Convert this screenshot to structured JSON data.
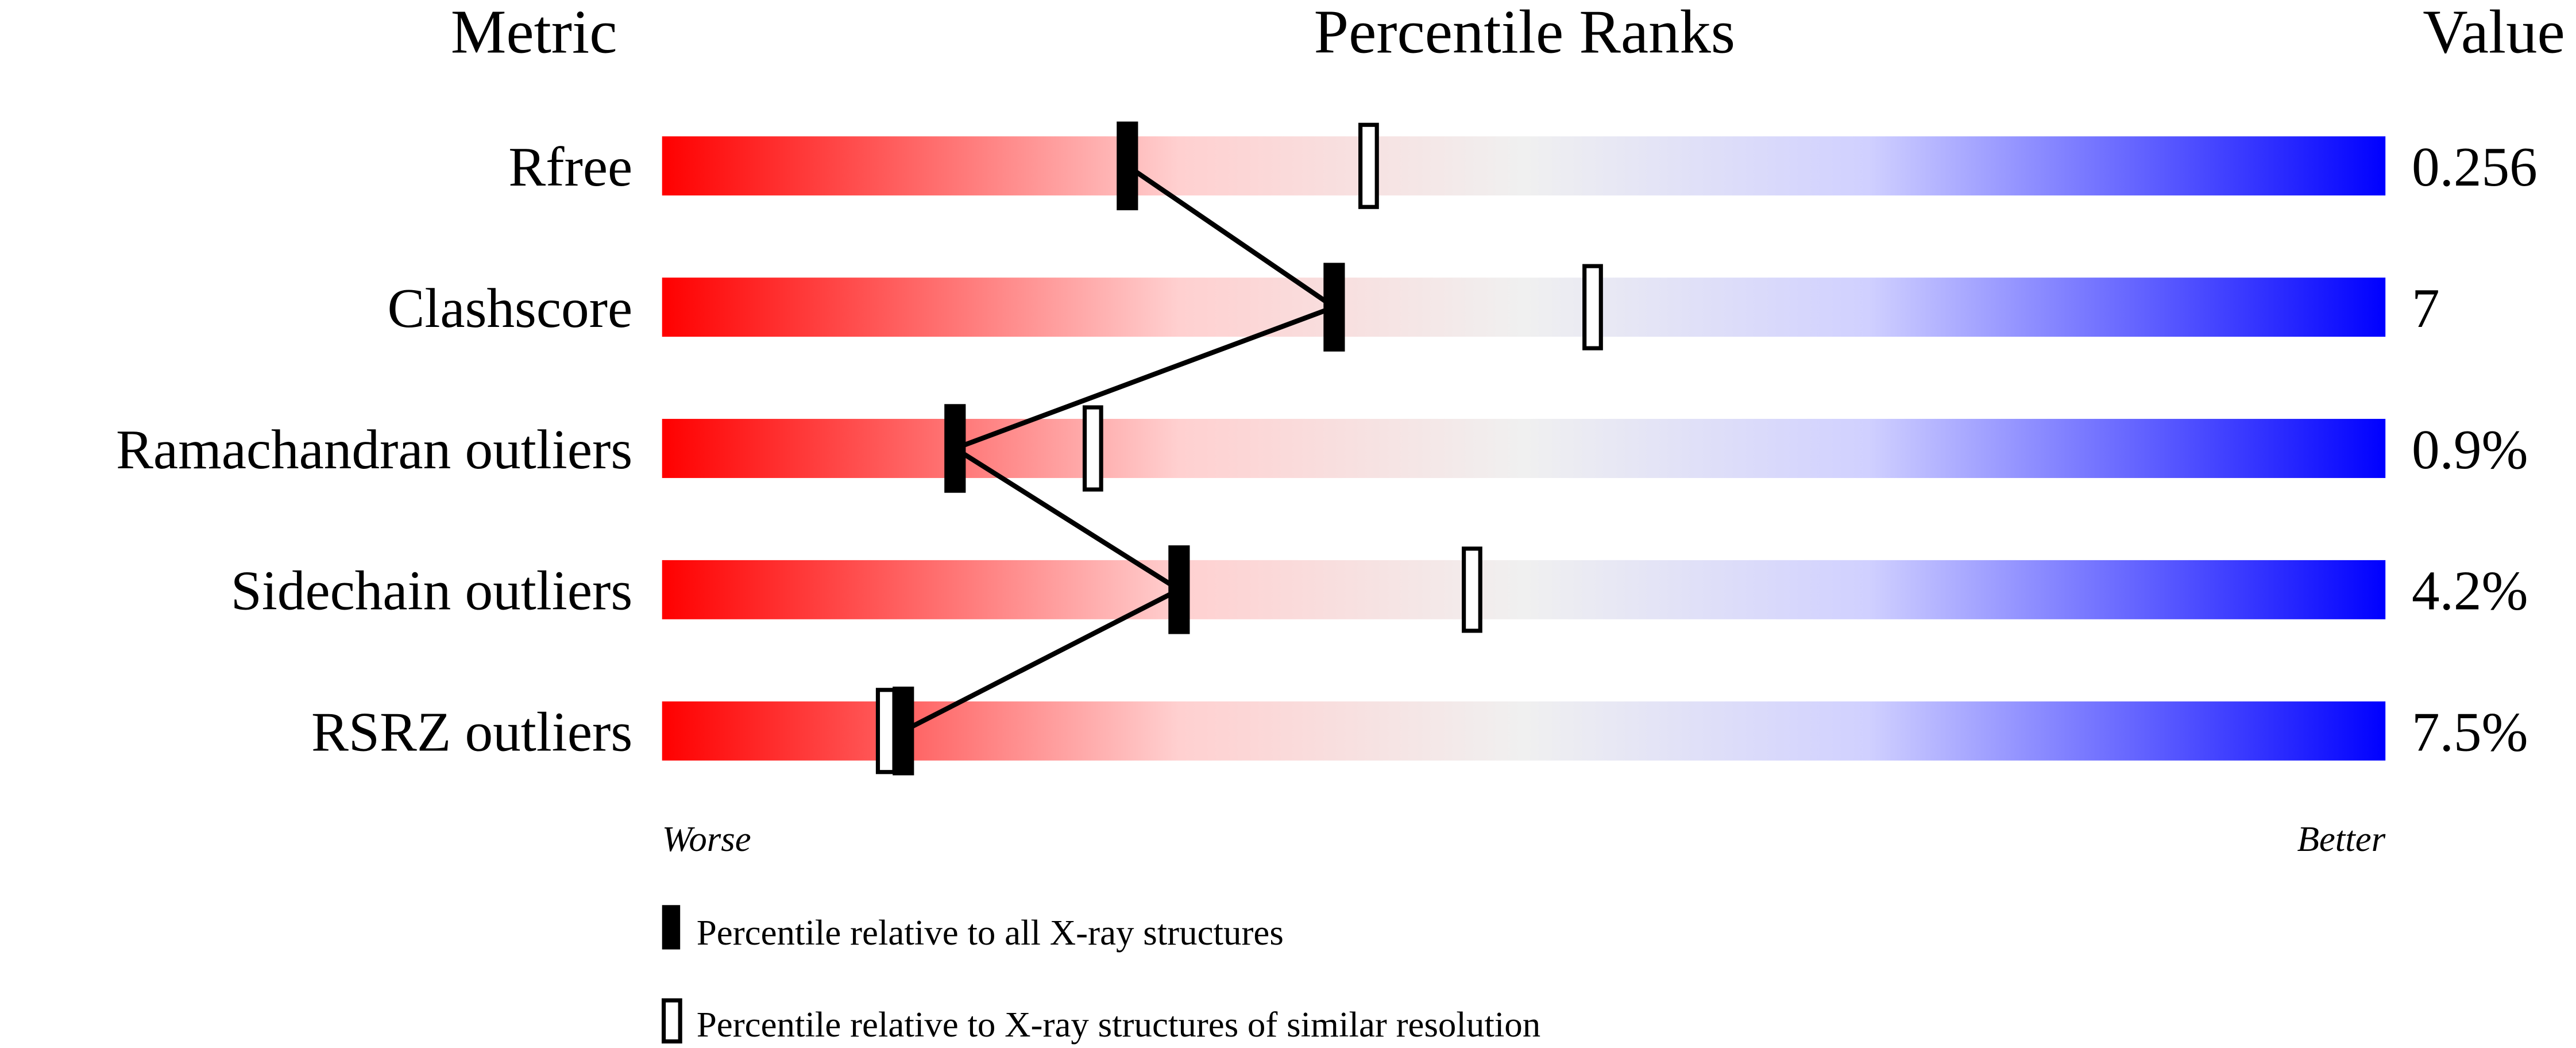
{
  "chart_data": {
    "type": "percentile-slider",
    "headers": {
      "metric": "Metric",
      "ranks": "Percentile Ranks",
      "value": "Value"
    },
    "xlim": [
      0,
      100
    ],
    "axis_labels": {
      "left": "Worse",
      "right": "Better"
    },
    "gradient_colors": [
      "#ff0000",
      "#ffd0d0",
      "#f0f0f0",
      "#d0d0ff",
      "#0000ff"
    ],
    "metrics": [
      {
        "name": "Rfree",
        "value": "0.256",
        "percentile_all": 27,
        "percentile_similar": 41
      },
      {
        "name": "Clashscore",
        "value": "7",
        "percentile_all": 39,
        "percentile_similar": 54
      },
      {
        "name": "Ramachandran outliers",
        "value": "0.9%",
        "percentile_all": 17,
        "percentile_similar": 25
      },
      {
        "name": "Sidechain outliers",
        "value": "4.2%",
        "percentile_all": 30,
        "percentile_similar": 47
      },
      {
        "name": "RSRZ outliers",
        "value": "7.5%",
        "percentile_all": 14,
        "percentile_similar": 13
      }
    ],
    "legend": [
      {
        "marker": "filled",
        "label": "Percentile relative to all X-ray structures"
      },
      {
        "marker": "open",
        "label": "Percentile relative to X-ray structures of similar resolution"
      }
    ]
  }
}
